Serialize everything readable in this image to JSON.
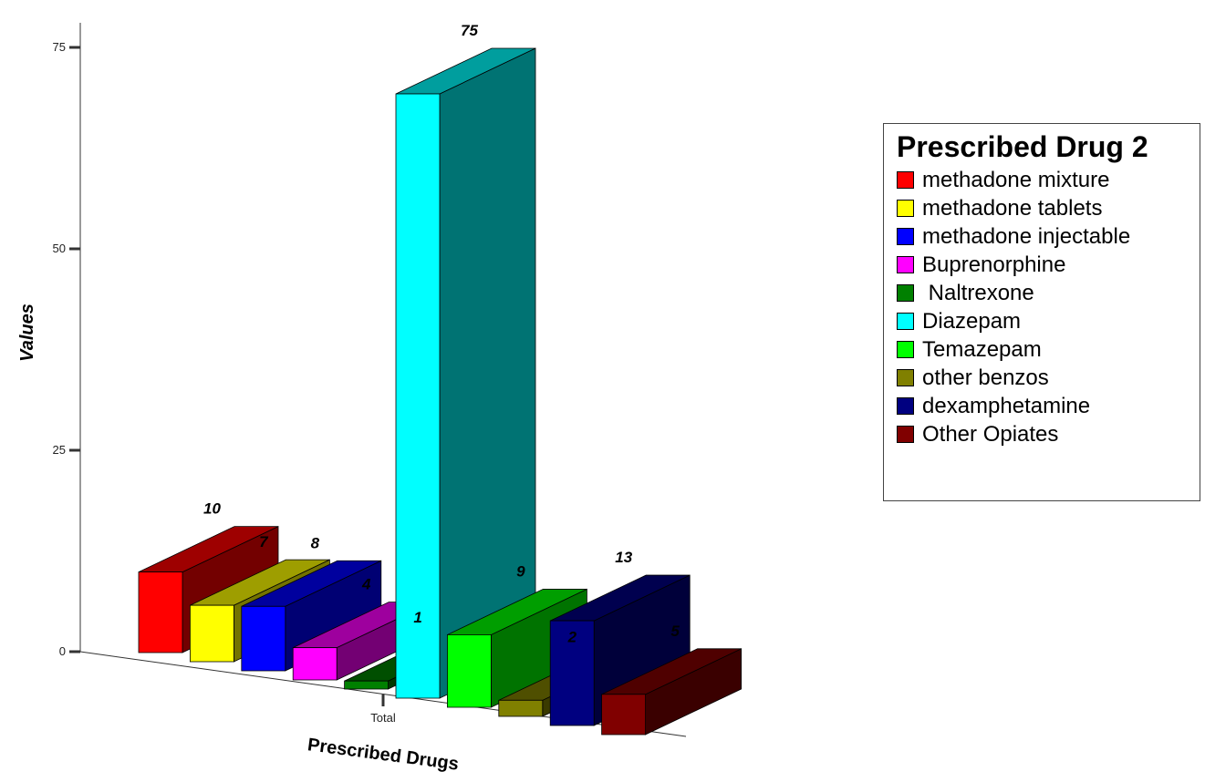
{
  "chart_data": {
    "type": "bar",
    "ylabel": "Values",
    "xlabel": "Prescribed Drugs",
    "categories": [
      "Total"
    ],
    "ylim": [
      0,
      75
    ],
    "yticks": [
      0,
      25,
      50,
      75
    ],
    "legend_title": "Prescribed Drug 2",
    "legend_position": "right",
    "series": [
      {
        "name": "methadone mixture",
        "values": [
          10
        ],
        "color": "#ff0000"
      },
      {
        "name": "methadone tablets",
        "values": [
          7
        ],
        "color": "#ffff00"
      },
      {
        "name": "methadone injectable",
        "values": [
          8
        ],
        "color": "#0000ff"
      },
      {
        "name": "Buprenorphine",
        "values": [
          4
        ],
        "color": "#ff00ff"
      },
      {
        "name": " Naltrexone",
        "values": [
          1
        ],
        "color": "#008000"
      },
      {
        "name": "Diazepam",
        "values": [
          75
        ],
        "color": "#00ffff"
      },
      {
        "name": "Temazepam",
        "values": [
          9
        ],
        "color": "#00ff00"
      },
      {
        "name": "other benzos",
        "values": [
          2
        ],
        "color": "#808000"
      },
      {
        "name": "dexamphetamine",
        "values": [
          13
        ],
        "color": "#000080"
      },
      {
        "name": "Other Opiates",
        "values": [
          5
        ],
        "color": "#800000"
      }
    ]
  }
}
